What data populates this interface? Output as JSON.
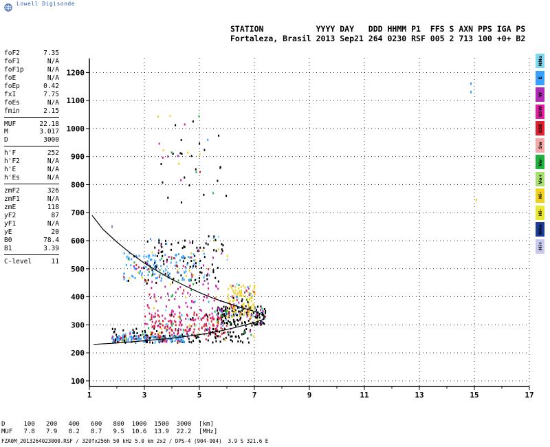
{
  "app": {
    "name": "Lowell Digisonde"
  },
  "header": {
    "labels": "STATION           YYYY DAY   DDD HHMM P1  FFS S AXN PPS IGA PS",
    "values": "Fortaleza, Brasil 2013 Sep21 264 0230 RSF 005 2 713 100 +0+ B2"
  },
  "params": {
    "group1": [
      {
        "k": "foF2",
        "v": "7.35"
      },
      {
        "k": "foF1",
        "v": "N/A"
      },
      {
        "k": "foF1p",
        "v": "N/A"
      },
      {
        "k": "foE",
        "v": "N/A"
      },
      {
        "k": "foEp",
        "v": "0.42"
      },
      {
        "k": "fxI",
        "v": "7.75"
      },
      {
        "k": "foEs",
        "v": "N/A"
      },
      {
        "k": "fmin",
        "v": "2.15"
      }
    ],
    "group2": [
      {
        "k": "MUF",
        "v": "22.18"
      },
      {
        "k": "M",
        "v": "3.017"
      },
      {
        "k": "D",
        "v": "3000"
      }
    ],
    "group3": [
      {
        "k": "h'F",
        "v": "252"
      },
      {
        "k": "h'F2",
        "v": "N/A"
      },
      {
        "k": "h'E",
        "v": "N/A"
      },
      {
        "k": "h'Es",
        "v": "N/A"
      }
    ],
    "group4": [
      {
        "k": "zmF2",
        "v": "326"
      },
      {
        "k": "zmF1",
        "v": "N/A"
      },
      {
        "k": "zmE",
        "v": "118"
      },
      {
        "k": "yF2",
        "v": "87"
      },
      {
        "k": "yF1",
        "v": "N/A"
      },
      {
        "k": "yE",
        "v": "20"
      },
      {
        "k": "B0",
        "v": "78.4"
      },
      {
        "k": "B1",
        "v": "3.39"
      }
    ],
    "group5": [
      {
        "k": "C-level",
        "v": "11"
      }
    ]
  },
  "dmuf": {
    "d_line": "D     100   200   400   600   800  1000  1500  3000  [km]",
    "muf_line": "MUF   7.8   7.9   8.2   8.7   9.5  10.6  13.9  22.2  [MHz]"
  },
  "footer": {
    "text": "FZA0M_2013264023000.RSF / 320fx256h 50 kHz 5.0 km 2x2 / DPS-4 (904-904)  3.9 S 321.6 E"
  },
  "legend": [
    {
      "label": "NNo",
      "color": "#7fd8f0"
    },
    {
      "label": "E",
      "color": "#3aa0ff"
    },
    {
      "label": "W",
      "color": "#b02ab8"
    },
    {
      "label": "SSW",
      "color": "#e020a0"
    },
    {
      "label": "SSE",
      "color": "#e02030"
    },
    {
      "label": "Sw",
      "color": "#f4a8a8"
    },
    {
      "label": "Vo-",
      "color": "#20b040"
    },
    {
      "label": "Vo+",
      "color": "#a8e070"
    },
    {
      "label": "Hi-",
      "color": "#f0d020"
    },
    {
      "label": "Hi-",
      "color": "#e8e830"
    },
    {
      "label": "NNo",
      "color": "#1a3c9a"
    },
    {
      "label": "Hi+",
      "color": "#c8c8f0"
    }
  ],
  "chart_data": {
    "type": "scatter",
    "title": "",
    "xlabel": "",
    "ylabel": "",
    "xlim": [
      1,
      17
    ],
    "ylim": [
      80,
      1250
    ],
    "x_ticks": [
      1,
      3,
      5,
      7,
      9,
      11,
      13,
      15,
      17
    ],
    "y_ticks": [
      100,
      200,
      300,
      400,
      500,
      600,
      700,
      800,
      900,
      1000,
      1100,
      1200
    ],
    "grid": true,
    "profile_curve": {
      "x": [
        1.1,
        1.5,
        2.0,
        2.5,
        3.0,
        3.5,
        4.0,
        4.5,
        5.0,
        5.5,
        6.0,
        6.5,
        7.0,
        7.25,
        7.35
      ],
      "y": [
        690,
        640,
        595,
        555,
        520,
        490,
        462,
        438,
        415,
        395,
        378,
        362,
        348,
        338,
        330
      ]
    },
    "trace_curve": {
      "x": [
        1.15,
        2.0,
        3.0,
        4.0,
        5.0,
        5.5,
        6.0,
        6.5,
        7.0,
        7.2,
        7.35,
        7.35,
        7.25
      ],
      "y": [
        230,
        235,
        243,
        252,
        265,
        273,
        283,
        295,
        308,
        315,
        320,
        335,
        345
      ]
    },
    "clusters": [
      {
        "name": "o-trace",
        "color": "#000000",
        "x": [
          1.8,
          7.0
        ],
        "y": [
          240,
          290
        ]
      },
      {
        "name": "x-trace",
        "color": "#000000",
        "x": [
          5.6,
          7.4
        ],
        "y": [
          300,
          370
        ]
      },
      {
        "name": "spread",
        "color": "#d020a0",
        "x": [
          3.0,
          5.8
        ],
        "y": [
          280,
          450
        ]
      },
      {
        "name": "spread-red",
        "color": "#e02030",
        "x": [
          3.2,
          5.8
        ],
        "y": [
          260,
          340
        ]
      },
      {
        "name": "low-blue",
        "color": "#3aa0ff",
        "x": [
          1.8,
          4.5
        ],
        "y": [
          240,
          265
        ]
      },
      {
        "name": "yellow-hi",
        "color": "#f0d020",
        "x": [
          6.0,
          7.0
        ],
        "y": [
          330,
          450
        ]
      },
      {
        "name": "second-hop",
        "color": "#000000",
        "x": [
          3.0,
          6.0
        ],
        "y": [
          450,
          620
        ]
      },
      {
        "name": "second-cyan",
        "color": "#3aa0ff",
        "x": [
          2.2,
          4.8
        ],
        "y": [
          460,
          560
        ]
      },
      {
        "name": "third-hop",
        "color": "#000000",
        "x": [
          3.4,
          6.0
        ],
        "y": [
          740,
          1050
        ]
      }
    ],
    "isolated_points": [
      {
        "x": 14.85,
        "y": 1165,
        "color": "#3aa0ff"
      },
      {
        "x": 14.85,
        "y": 1135,
        "color": "#3aa0ff"
      },
      {
        "x": 15.05,
        "y": 750,
        "color": "#f0d020"
      },
      {
        "x": 1.8,
        "y": 655,
        "color": "#8080d0"
      }
    ]
  }
}
